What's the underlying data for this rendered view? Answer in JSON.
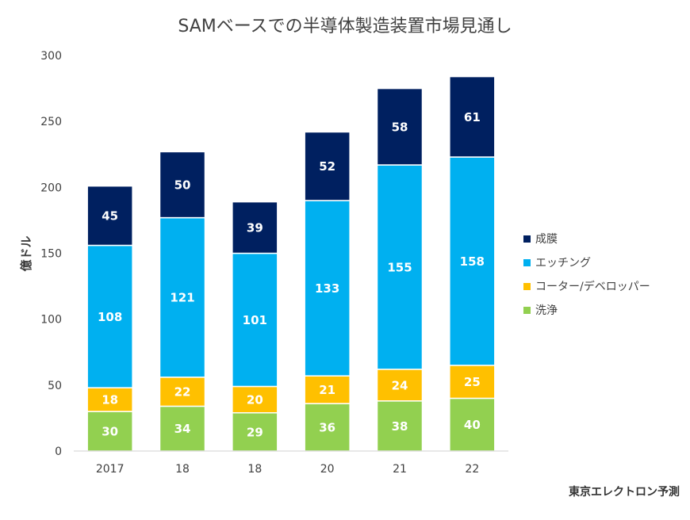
{
  "chart_data": {
    "type": "bar",
    "stacked": true,
    "title": "SAMベースでの半導体製造装置市場見通し",
    "ylabel": "億ドル",
    "xlabel": "",
    "categories": [
      "2017",
      "18",
      "18",
      "20",
      "21",
      "22"
    ],
    "ylim": [
      0,
      300
    ],
    "yticks": [
      0,
      50,
      100,
      150,
      200,
      250,
      300
    ],
    "grid": false,
    "legend_position": "right",
    "series": [
      {
        "name": "洗浄",
        "values": [
          30,
          34,
          29,
          36,
          38,
          40
        ],
        "color": "#92d050"
      },
      {
        "name": "コーター/デベロッパー",
        "values": [
          18,
          22,
          20,
          21,
          24,
          25
        ],
        "color": "#ffc000"
      },
      {
        "name": "エッチング",
        "values": [
          108,
          121,
          101,
          133,
          155,
          158
        ],
        "color": "#00b0f0"
      },
      {
        "name": "成膜",
        "values": [
          45,
          50,
          39,
          52,
          58,
          61
        ],
        "color": "#002060"
      }
    ],
    "legend_order": [
      "成膜",
      "エッチング",
      "コーター/デベロッパー",
      "洗浄"
    ],
    "source_note": "東京エレクトロン予測"
  }
}
